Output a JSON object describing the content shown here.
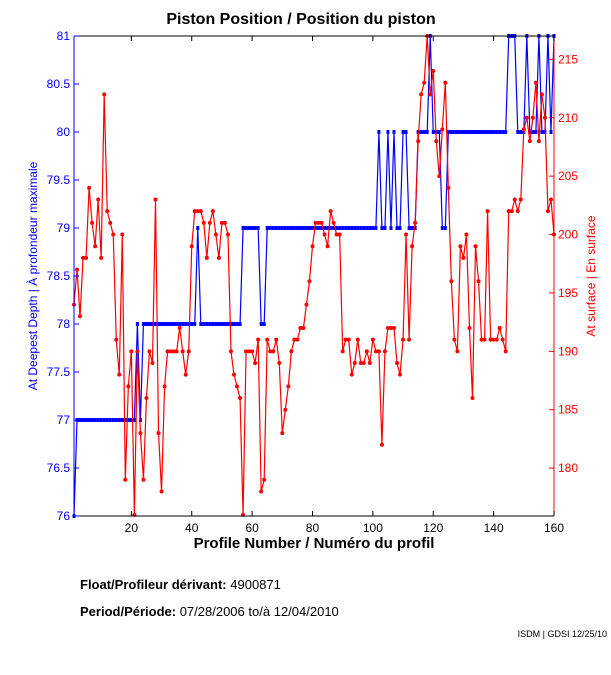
{
  "chart_data": {
    "type": "line",
    "title": "Piston Position / Position du piston",
    "xlabel": "Profile Number / Numéro du profil",
    "ylabel_left": "At Deepest Depth | À profondeur maximale",
    "ylabel_right": "At surface | En surface",
    "xlim": [
      1,
      160
    ],
    "ylim_left": [
      76,
      81
    ],
    "ylim_right": [
      175.9,
      217
    ],
    "x_ticks": [
      20,
      40,
      60,
      80,
      100,
      120,
      140,
      160
    ],
    "y_ticks_left": [
      "76",
      "76.5",
      "77",
      "77.5",
      "78",
      "78.5",
      "79",
      "79.5",
      "80",
      "80.5",
      "81"
    ],
    "y_ticks_right": [
      "180",
      "185",
      "190",
      "195",
      "200",
      "205",
      "210",
      "215"
    ],
    "grid": false,
    "colors": {
      "left": "#0000ff",
      "right": "#ff0000",
      "axis": "#000000"
    },
    "series": [
      {
        "name": "At Deepest Depth",
        "axis": "left",
        "color": "#0000ff",
        "values": [
          76,
          77,
          77,
          77,
          77,
          77,
          77,
          77,
          77,
          77,
          77,
          77,
          77,
          77,
          77,
          77,
          77,
          77,
          77,
          77,
          77,
          78,
          77,
          78,
          78,
          78,
          78,
          78,
          78,
          78,
          78,
          78,
          78,
          78,
          78,
          78,
          78,
          78,
          78,
          78,
          78,
          79,
          78,
          78,
          78,
          78,
          78,
          78,
          78,
          78,
          78,
          78,
          78,
          78,
          78,
          78,
          79,
          79,
          79,
          79,
          79,
          79,
          78,
          78,
          79,
          79,
          79,
          79,
          79,
          79,
          79,
          79,
          79,
          79,
          79,
          79,
          79,
          79,
          79,
          79,
          79,
          79,
          79,
          79,
          79,
          79,
          79,
          79,
          79,
          79,
          79,
          79,
          79,
          79,
          79,
          79,
          79,
          79,
          79,
          79,
          79,
          80,
          79,
          79,
          80,
          79,
          80,
          79,
          79,
          80,
          80,
          79,
          79,
          79,
          80,
          80,
          80,
          80,
          81,
          80,
          80,
          80,
          79,
          79,
          80,
          80,
          80,
          80,
          80,
          80,
          80,
          80,
          80,
          80,
          80,
          80,
          80,
          80,
          80,
          80,
          80,
          80,
          80,
          80,
          81,
          81,
          81,
          80,
          80,
          80,
          81,
          80,
          80,
          80,
          81,
          80,
          80,
          81,
          80,
          81
        ]
      },
      {
        "name": "At surface",
        "axis": "right",
        "color": "#ff0000",
        "values": [
          194,
          197,
          193,
          198,
          198,
          204,
          201,
          199,
          203,
          198,
          212,
          202,
          201,
          200,
          191,
          188,
          200,
          179,
          187,
          190,
          176,
          190,
          183,
          179,
          186,
          190,
          189,
          203,
          183,
          178,
          187,
          190,
          190,
          190,
          190,
          192,
          190,
          188,
          190,
          199,
          202,
          202,
          202,
          201,
          198,
          201,
          202,
          200,
          198,
          201,
          201,
          200,
          190,
          188,
          187,
          186,
          176,
          190,
          190,
          190,
          189,
          191,
          178,
          179,
          191,
          190,
          190,
          191,
          189,
          183,
          185,
          187,
          190,
          191,
          191,
          192,
          192,
          194,
          196,
          199,
          201,
          201,
          201,
          200,
          199,
          202,
          201,
          200,
          200,
          190,
          191,
          191,
          188,
          189,
          191,
          189,
          189,
          190,
          189,
          191,
          190,
          190,
          182,
          190,
          192,
          192,
          192,
          189,
          188,
          191,
          200,
          191,
          199,
          201,
          208,
          212,
          213,
          217,
          212,
          214,
          208,
          205,
          209,
          213,
          204,
          196,
          191,
          190,
          199,
          198,
          200,
          192,
          186,
          199,
          196,
          191,
          191,
          202,
          191,
          191,
          191,
          192,
          191,
          190,
          202,
          202,
          203,
          202,
          203,
          209,
          210,
          208,
          210,
          213,
          208,
          212,
          210,
          202,
          203,
          200
        ]
      }
    ]
  },
  "info": {
    "float_label": "Float/Profileur dérivant:",
    "float_value": "4900871",
    "period_label": "Period/Période:",
    "period_start": "07/28/2006",
    "period_sep": "to/à",
    "period_end": "12/04/2010",
    "footer": "ISDM | GDSI 12/25/10"
  }
}
